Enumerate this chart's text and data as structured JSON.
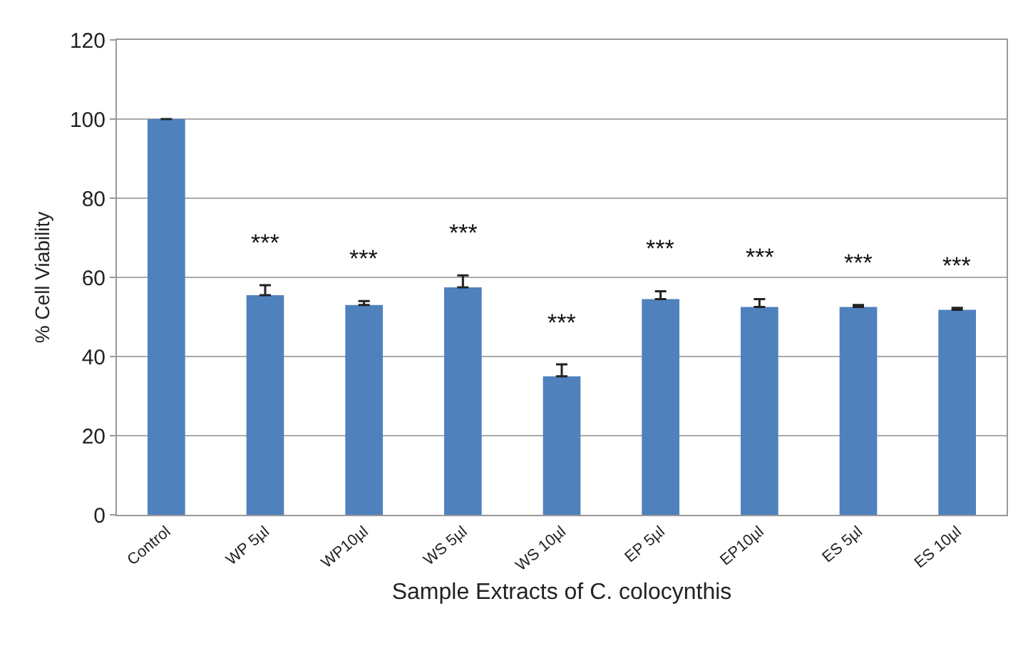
{
  "chart_data": {
    "type": "bar",
    "categories": [
      "Control",
      "WP 5µl",
      "WP10µl",
      "WS 5µl",
      "WS 10µl",
      "EP 5µl",
      "EP10µl",
      "ES 5µl",
      "ES 10µl"
    ],
    "values": [
      100,
      55.5,
      53,
      57.5,
      35,
      54.5,
      52.5,
      52.5,
      51.8
    ],
    "errors": [
      null,
      [
        55.5,
        58
      ],
      [
        53,
        54
      ],
      [
        57.5,
        60.5
      ],
      [
        35,
        38
      ],
      [
        54.5,
        56.5
      ],
      [
        52.5,
        54.5
      ],
      [
        52.5,
        53
      ],
      [
        51.8,
        52.3
      ]
    ],
    "color": "#4f81bd",
    "xlabel": "Sample Extracts of C. colocynthis",
    "ylabel": "% Cell Viability",
    "ylim": [
      0,
      120
    ],
    "yticks": [
      0,
      20,
      40,
      60,
      80,
      100,
      120
    ],
    "grid": "y",
    "annotations": [
      "***",
      "***",
      "***",
      "***",
      "***",
      "***",
      "***",
      "***"
    ]
  }
}
